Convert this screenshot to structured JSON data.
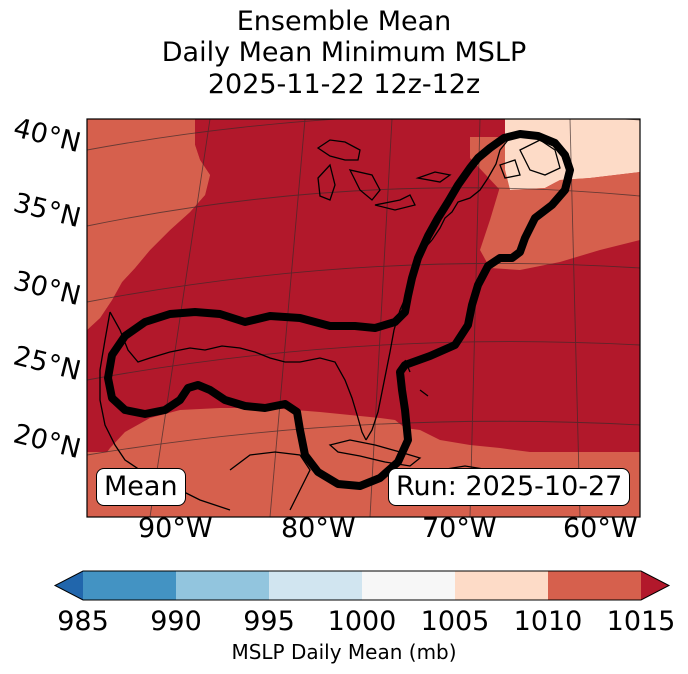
{
  "title": {
    "line1": "Ensemble Mean",
    "line2": "Daily Mean Minimum MSLP",
    "line3": "2025-11-22 12z-12z"
  },
  "map": {
    "lat_labels": [
      "40°N",
      "35°N",
      "30°N",
      "25°N",
      "20°N"
    ],
    "lon_labels": [
      "90°W",
      "80°W",
      "70°W",
      "60°W"
    ],
    "inset_left": "Mean",
    "inset_right": "Run: 2025-10-27",
    "contour_color": "#000000",
    "coastline_color": "#000000"
  },
  "colorbar": {
    "label": "MSLP Daily Mean (mb)",
    "ticks": [
      "985",
      "990",
      "995",
      "1000",
      "1005",
      "1010",
      "1015"
    ],
    "bins": [
      {
        "range": "<985",
        "color": "#2166ac"
      },
      {
        "range": "985-990",
        "color": "#4393c3"
      },
      {
        "range": "990-995",
        "color": "#92c5de"
      },
      {
        "range": "995-1000",
        "color": "#d1e5f0"
      },
      {
        "range": "1000-1005",
        "color": "#f7f7f7"
      },
      {
        "range": "1005-1010",
        "color": "#fddbc7"
      },
      {
        "range": "1010-1015",
        "color": "#d6604d"
      },
      {
        "range": ">1015",
        "color": "#b2182b"
      }
    ]
  }
}
